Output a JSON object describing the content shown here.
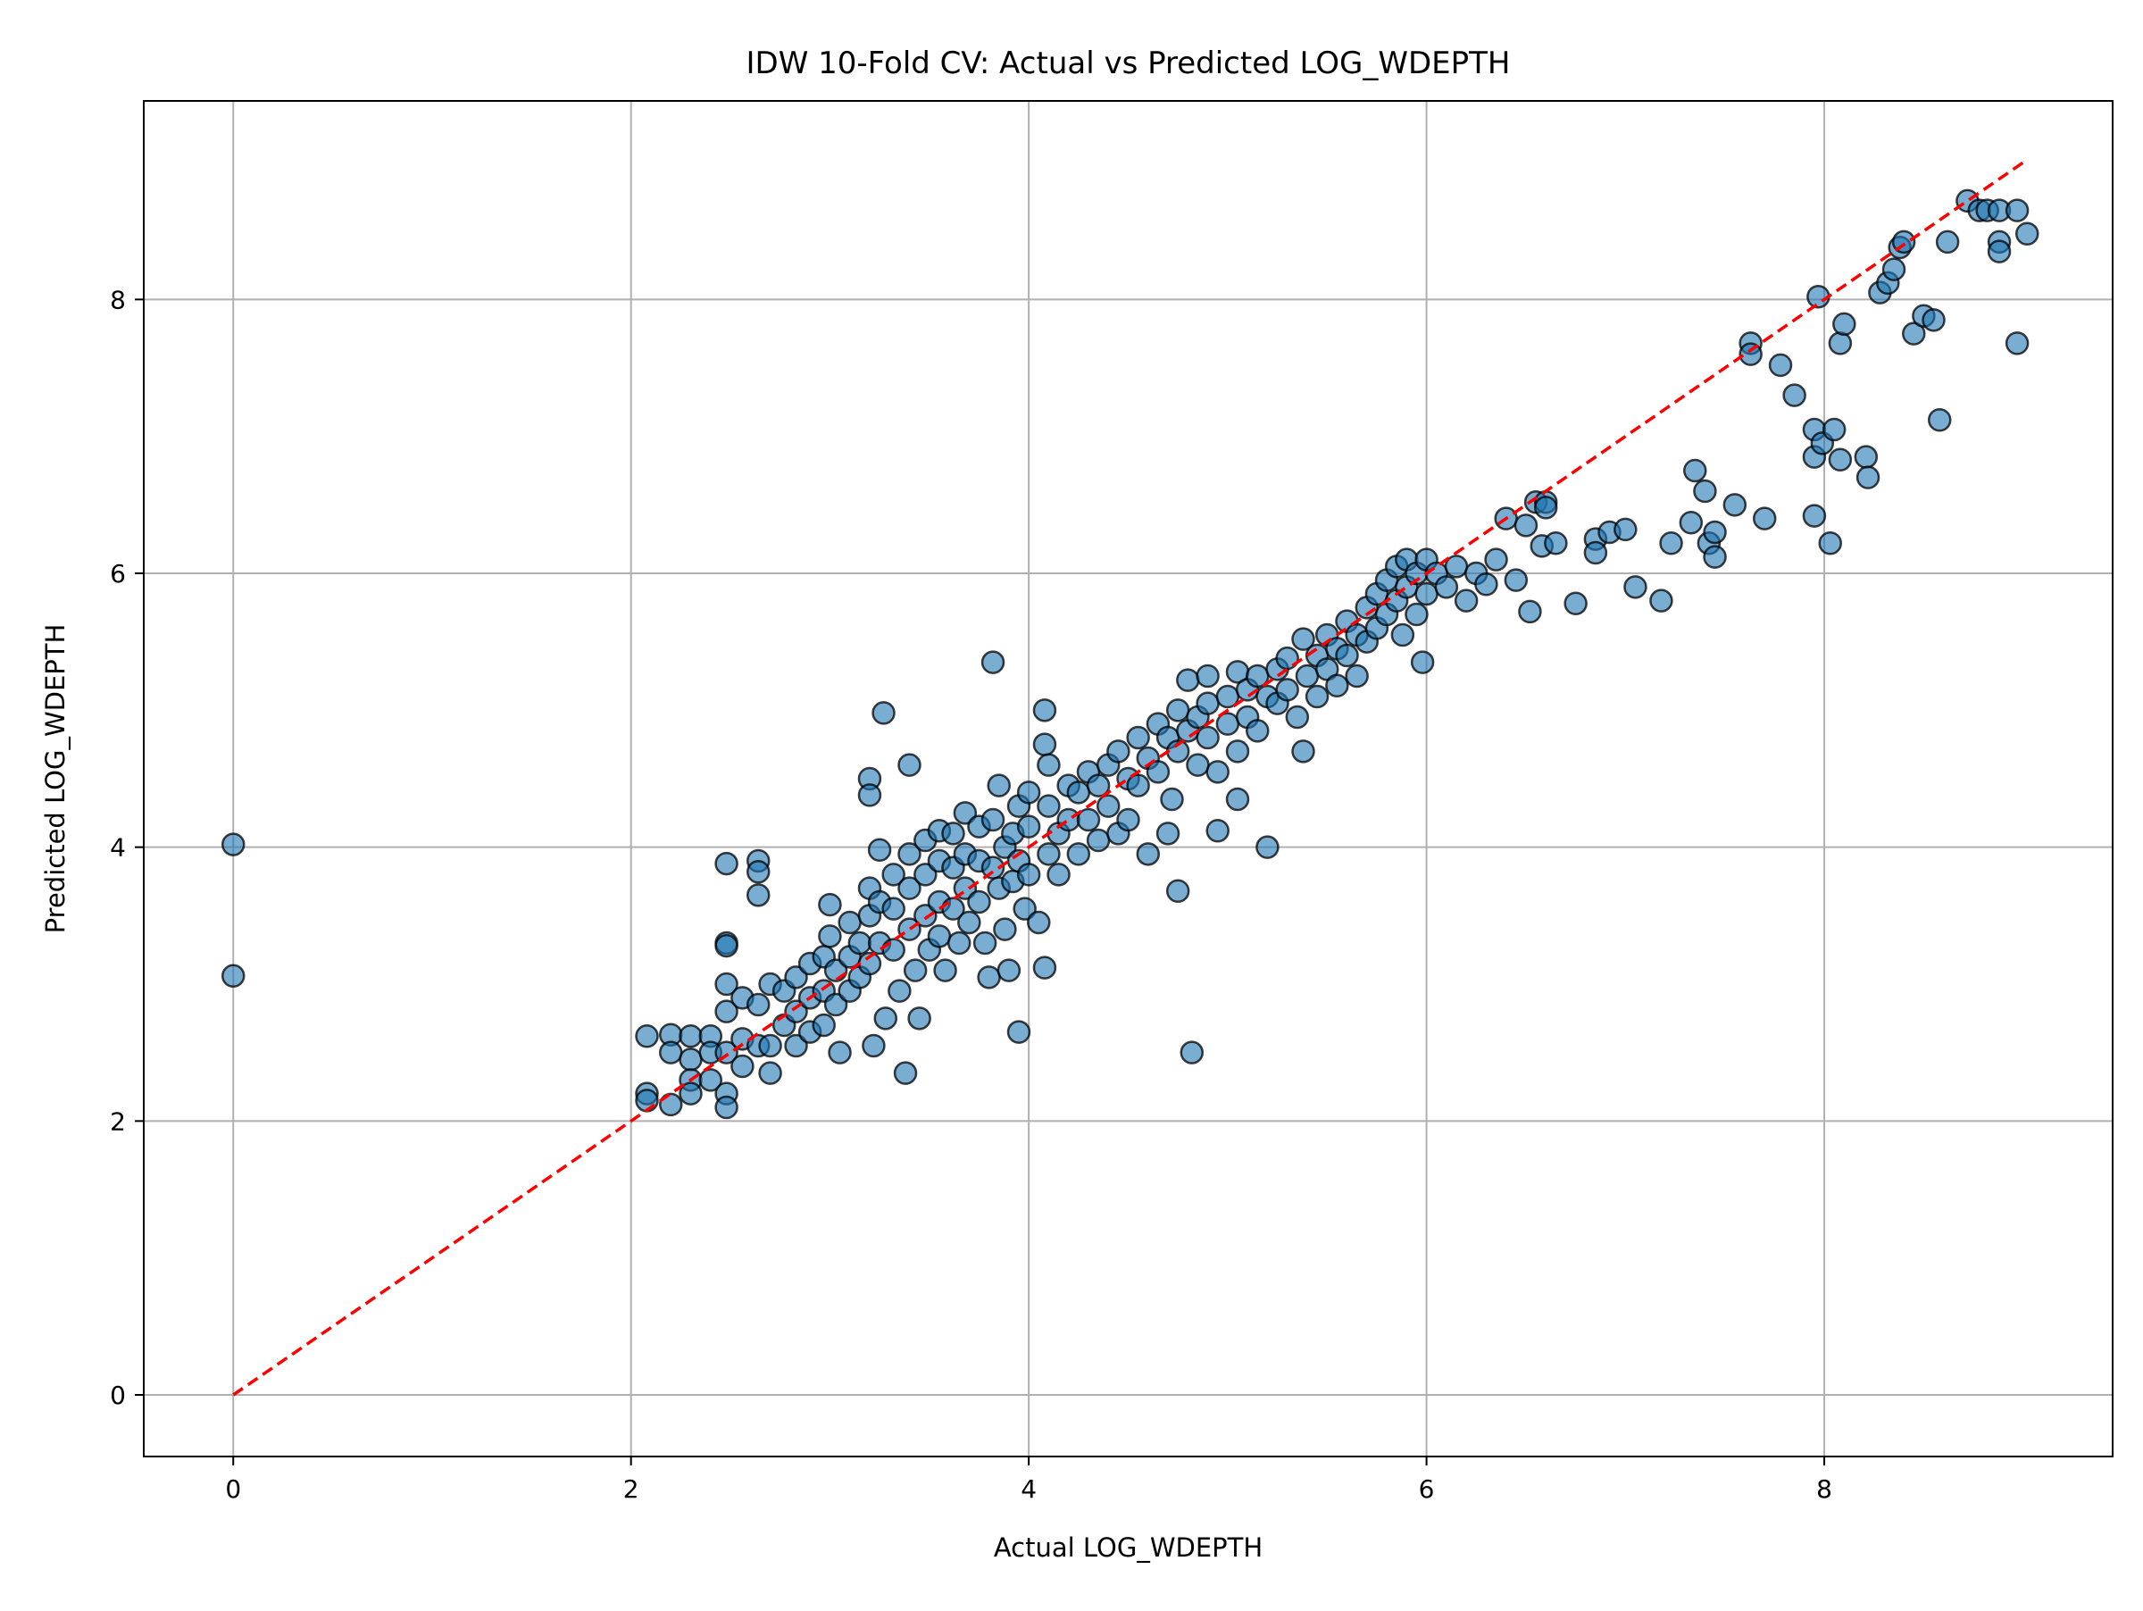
{
  "chart_data": {
    "type": "scatter",
    "title": "IDW 10-Fold CV: Actual vs Predicted LOG_WDEPTH",
    "xlabel": "Actual LOG_WDEPTH",
    "ylabel": "Predicted LOG_WDEPTH",
    "xlim": [
      -0.45,
      9.45
    ],
    "ylim": [
      -0.45,
      9.45
    ],
    "xticks": [
      0,
      2,
      4,
      6,
      8
    ],
    "yticks": [
      0,
      2,
      4,
      6,
      8
    ],
    "grid": true,
    "legend": "none",
    "colors": {
      "point_fill": "#1f77b4",
      "point_edge": "#000000",
      "reference_line": "#ff0000",
      "grid": "#b0b0b0"
    },
    "reference_line": {
      "style": "dashed",
      "from": [
        0,
        0
      ],
      "to": [
        9,
        9
      ]
    },
    "series": [
      {
        "points": [
          [
            0.0,
            4.02
          ],
          [
            0.0,
            3.06
          ],
          [
            2.08,
            2.62
          ],
          [
            2.08,
            2.2
          ],
          [
            2.08,
            2.15
          ],
          [
            2.2,
            2.63
          ],
          [
            2.2,
            2.5
          ],
          [
            2.2,
            2.12
          ],
          [
            2.3,
            2.62
          ],
          [
            2.3,
            2.45
          ],
          [
            2.3,
            2.3
          ],
          [
            2.3,
            2.2
          ],
          [
            2.4,
            2.62
          ],
          [
            2.4,
            2.5
          ],
          [
            2.4,
            2.3
          ],
          [
            2.48,
            3.88
          ],
          [
            2.48,
            3.3
          ],
          [
            2.48,
            3.28
          ],
          [
            2.48,
            3.0
          ],
          [
            2.48,
            2.8
          ],
          [
            2.48,
            2.5
          ],
          [
            2.48,
            2.2
          ],
          [
            2.48,
            2.1
          ],
          [
            2.56,
            2.9
          ],
          [
            2.56,
            2.6
          ],
          [
            2.56,
            2.4
          ],
          [
            2.64,
            3.9
          ],
          [
            2.64,
            3.82
          ],
          [
            2.64,
            3.65
          ],
          [
            2.64,
            2.85
          ],
          [
            2.64,
            2.55
          ],
          [
            2.7,
            3.0
          ],
          [
            2.7,
            2.55
          ],
          [
            2.7,
            2.35
          ],
          [
            2.77,
            2.95
          ],
          [
            2.77,
            2.7
          ],
          [
            2.83,
            3.05
          ],
          [
            2.83,
            2.8
          ],
          [
            2.83,
            2.55
          ],
          [
            2.9,
            3.15
          ],
          [
            2.9,
            2.9
          ],
          [
            2.9,
            2.65
          ],
          [
            2.97,
            3.2
          ],
          [
            2.97,
            2.95
          ],
          [
            2.97,
            2.7
          ],
          [
            3.0,
            3.58
          ],
          [
            3.0,
            3.35
          ],
          [
            3.03,
            3.1
          ],
          [
            3.03,
            2.85
          ],
          [
            3.05,
            2.5
          ],
          [
            3.1,
            3.45
          ],
          [
            3.1,
            3.2
          ],
          [
            3.1,
            2.95
          ],
          [
            3.15,
            3.3
          ],
          [
            3.15,
            3.05
          ],
          [
            3.2,
            4.5
          ],
          [
            3.2,
            4.38
          ],
          [
            3.2,
            3.7
          ],
          [
            3.2,
            3.5
          ],
          [
            3.2,
            3.15
          ],
          [
            3.22,
            2.55
          ],
          [
            3.25,
            3.98
          ],
          [
            3.25,
            3.6
          ],
          [
            3.25,
            3.3
          ],
          [
            3.27,
            4.98
          ],
          [
            3.28,
            2.75
          ],
          [
            3.32,
            3.8
          ],
          [
            3.32,
            3.55
          ],
          [
            3.32,
            3.25
          ],
          [
            3.35,
            2.95
          ],
          [
            3.38,
            2.35
          ],
          [
            3.4,
            4.6
          ],
          [
            3.4,
            3.95
          ],
          [
            3.4,
            3.7
          ],
          [
            3.4,
            3.4
          ],
          [
            3.43,
            3.1
          ],
          [
            3.45,
            2.75
          ],
          [
            3.48,
            4.05
          ],
          [
            3.48,
            3.8
          ],
          [
            3.48,
            3.5
          ],
          [
            3.5,
            3.25
          ],
          [
            3.55,
            4.12
          ],
          [
            3.55,
            3.9
          ],
          [
            3.55,
            3.6
          ],
          [
            3.55,
            3.35
          ],
          [
            3.58,
            3.1
          ],
          [
            3.62,
            4.1
          ],
          [
            3.62,
            3.85
          ],
          [
            3.62,
            3.55
          ],
          [
            3.65,
            3.3
          ],
          [
            3.68,
            4.25
          ],
          [
            3.68,
            3.95
          ],
          [
            3.68,
            3.7
          ],
          [
            3.7,
            3.45
          ],
          [
            3.75,
            4.15
          ],
          [
            3.75,
            3.9
          ],
          [
            3.75,
            3.6
          ],
          [
            3.78,
            3.3
          ],
          [
            3.8,
            3.05
          ],
          [
            3.82,
            5.35
          ],
          [
            3.82,
            4.2
          ],
          [
            3.82,
            3.85
          ],
          [
            3.85,
            4.45
          ],
          [
            3.85,
            3.7
          ],
          [
            3.88,
            4.0
          ],
          [
            3.88,
            3.4
          ],
          [
            3.9,
            3.1
          ],
          [
            3.92,
            4.1
          ],
          [
            3.92,
            3.75
          ],
          [
            3.95,
            2.65
          ],
          [
            3.95,
            4.3
          ],
          [
            3.95,
            3.9
          ],
          [
            3.98,
            3.55
          ],
          [
            4.0,
            4.4
          ],
          [
            4.0,
            4.15
          ],
          [
            4.0,
            3.8
          ],
          [
            4.05,
            3.45
          ],
          [
            4.08,
            5.0
          ],
          [
            4.08,
            4.75
          ],
          [
            4.08,
            3.12
          ],
          [
            4.1,
            4.6
          ],
          [
            4.1,
            4.3
          ],
          [
            4.1,
            3.95
          ],
          [
            4.15,
            4.1
          ],
          [
            4.15,
            3.8
          ],
          [
            4.2,
            4.45
          ],
          [
            4.2,
            4.2
          ],
          [
            4.25,
            4.4
          ],
          [
            4.25,
            3.95
          ],
          [
            4.3,
            4.55
          ],
          [
            4.3,
            4.2
          ],
          [
            4.35,
            4.45
          ],
          [
            4.35,
            4.05
          ],
          [
            4.4,
            4.6
          ],
          [
            4.4,
            4.3
          ],
          [
            4.45,
            4.7
          ],
          [
            4.45,
            4.1
          ],
          [
            4.5,
            4.5
          ],
          [
            4.5,
            4.2
          ],
          [
            4.55,
            4.8
          ],
          [
            4.55,
            4.45
          ],
          [
            4.6,
            4.65
          ],
          [
            4.6,
            3.95
          ],
          [
            4.65,
            4.9
          ],
          [
            4.65,
            4.55
          ],
          [
            4.7,
            4.8
          ],
          [
            4.7,
            4.1
          ],
          [
            4.72,
            4.35
          ],
          [
            4.75,
            5.0
          ],
          [
            4.75,
            4.7
          ],
          [
            4.75,
            3.68
          ],
          [
            4.8,
            5.22
          ],
          [
            4.8,
            4.85
          ],
          [
            4.82,
            2.5
          ],
          [
            4.85,
            4.95
          ],
          [
            4.85,
            4.6
          ],
          [
            4.9,
            5.25
          ],
          [
            4.9,
            5.05
          ],
          [
            4.9,
            4.8
          ],
          [
            4.95,
            4.12
          ],
          [
            4.95,
            4.55
          ],
          [
            5.0,
            5.1
          ],
          [
            5.0,
            4.9
          ],
          [
            5.05,
            5.28
          ],
          [
            5.05,
            4.7
          ],
          [
            5.05,
            4.35
          ],
          [
            5.1,
            5.15
          ],
          [
            5.1,
            4.95
          ],
          [
            5.15,
            5.25
          ],
          [
            5.15,
            4.85
          ],
          [
            5.2,
            5.1
          ],
          [
            5.2,
            4.0
          ],
          [
            5.25,
            5.3
          ],
          [
            5.25,
            5.05
          ],
          [
            5.3,
            5.38
          ],
          [
            5.3,
            5.15
          ],
          [
            5.35,
            4.95
          ],
          [
            5.38,
            5.52
          ],
          [
            5.38,
            4.7
          ],
          [
            5.4,
            5.25
          ],
          [
            5.45,
            5.4
          ],
          [
            5.45,
            5.1
          ],
          [
            5.5,
            5.55
          ],
          [
            5.5,
            5.3
          ],
          [
            5.55,
            5.45
          ],
          [
            5.55,
            5.18
          ],
          [
            5.6,
            5.65
          ],
          [
            5.6,
            5.4
          ],
          [
            5.65,
            5.55
          ],
          [
            5.65,
            5.25
          ],
          [
            5.7,
            5.75
          ],
          [
            5.7,
            5.5
          ],
          [
            5.75,
            5.85
          ],
          [
            5.75,
            5.6
          ],
          [
            5.8,
            5.95
          ],
          [
            5.8,
            5.7
          ],
          [
            5.85,
            6.05
          ],
          [
            5.85,
            5.8
          ],
          [
            5.88,
            5.55
          ],
          [
            5.9,
            6.1
          ],
          [
            5.9,
            5.9
          ],
          [
            5.95,
            6.0
          ],
          [
            5.95,
            5.7
          ],
          [
            5.98,
            5.35
          ],
          [
            6.0,
            6.1
          ],
          [
            6.0,
            5.85
          ],
          [
            6.05,
            6.0
          ],
          [
            6.1,
            5.9
          ],
          [
            6.15,
            6.05
          ],
          [
            6.2,
            5.8
          ],
          [
            6.25,
            6.0
          ],
          [
            6.3,
            5.92
          ],
          [
            6.35,
            6.1
          ],
          [
            6.4,
            6.4
          ],
          [
            6.45,
            5.95
          ],
          [
            6.5,
            6.35
          ],
          [
            6.52,
            5.72
          ],
          [
            6.55,
            6.52
          ],
          [
            6.58,
            6.2
          ],
          [
            6.6,
            6.52
          ],
          [
            6.6,
            6.48
          ],
          [
            6.65,
            6.22
          ],
          [
            6.75,
            5.78
          ],
          [
            6.85,
            6.25
          ],
          [
            6.85,
            6.15
          ],
          [
            6.92,
            6.3
          ],
          [
            7.0,
            6.32
          ],
          [
            7.05,
            5.9
          ],
          [
            7.18,
            5.8
          ],
          [
            7.23,
            6.22
          ],
          [
            7.33,
            6.37
          ],
          [
            7.35,
            6.75
          ],
          [
            7.4,
            6.6
          ],
          [
            7.42,
            6.22
          ],
          [
            7.45,
            6.3
          ],
          [
            7.45,
            6.12
          ],
          [
            7.55,
            6.5
          ],
          [
            7.63,
            7.68
          ],
          [
            7.63,
            7.6
          ],
          [
            7.7,
            6.4
          ],
          [
            7.78,
            7.52
          ],
          [
            7.85,
            7.3
          ],
          [
            7.95,
            7.05
          ],
          [
            7.95,
            6.85
          ],
          [
            7.95,
            6.42
          ],
          [
            7.97,
            8.02
          ],
          [
            7.99,
            6.95
          ],
          [
            8.03,
            6.22
          ],
          [
            8.05,
            7.05
          ],
          [
            8.08,
            6.83
          ],
          [
            8.08,
            7.68
          ],
          [
            8.1,
            7.82
          ],
          [
            8.21,
            6.85
          ],
          [
            8.22,
            6.7
          ],
          [
            8.28,
            8.05
          ],
          [
            8.32,
            8.12
          ],
          [
            8.35,
            8.22
          ],
          [
            8.38,
            8.38
          ],
          [
            8.4,
            8.42
          ],
          [
            8.45,
            7.75
          ],
          [
            8.5,
            7.88
          ],
          [
            8.55,
            7.85
          ],
          [
            8.58,
            7.12
          ],
          [
            8.62,
            8.42
          ],
          [
            8.72,
            8.72
          ],
          [
            8.78,
            8.65
          ],
          [
            8.82,
            8.65
          ],
          [
            8.88,
            8.65
          ],
          [
            8.88,
            8.42
          ],
          [
            8.88,
            8.35
          ],
          [
            8.97,
            8.65
          ],
          [
            8.97,
            7.68
          ],
          [
            9.02,
            8.48
          ]
        ]
      }
    ]
  }
}
